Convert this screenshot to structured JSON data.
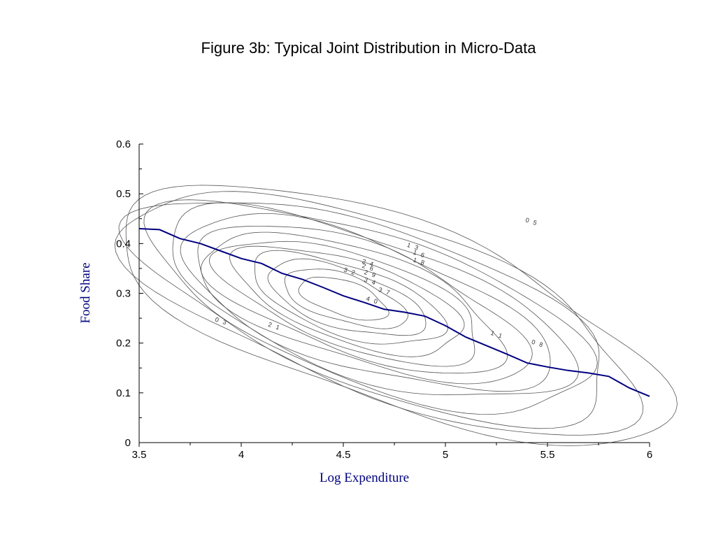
{
  "chart_data": {
    "type": "contour",
    "title": "Figure 3b: Typical Joint Distribution in Micro-Data",
    "xlabel": "Log Expenditure",
    "ylabel": "Food Share",
    "xlim": [
      3.5,
      6
    ],
    "ylim": [
      0,
      0.6
    ],
    "x_ticks": [
      "3.5",
      "4",
      "4.5",
      "5",
      "5.5",
      "6"
    ],
    "y_ticks": [
      "0",
      "0.1",
      "0.2",
      "0.3",
      "0.4",
      "0.5",
      "0.6"
    ],
    "x_tick_values": [
      3.5,
      4,
      4.5,
      5,
      5.5,
      6
    ],
    "y_tick_values": [
      0,
      0.1,
      0.2,
      0.3,
      0.4,
      0.5,
      0.6
    ],
    "grid": false,
    "colors": {
      "regression": "#000080",
      "axis_title": "#000080",
      "contour": "#555555"
    },
    "density_peak": {
      "x": 4.5,
      "y": 0.29
    },
    "contour_labels": [
      {
        "text": "0 5",
        "x": 5.42,
        "y": 0.44
      },
      {
        "text": "1 3",
        "x": 4.84,
        "y": 0.39
      },
      {
        "text": "1 6",
        "x": 4.87,
        "y": 0.375
      },
      {
        "text": "1 8",
        "x": 4.87,
        "y": 0.36
      },
      {
        "text": "2 4",
        "x": 4.62,
        "y": 0.357
      },
      {
        "text": "2 6",
        "x": 4.62,
        "y": 0.348
      },
      {
        "text": "2 9",
        "x": 4.63,
        "y": 0.335
      },
      {
        "text": "3 2",
        "x": 4.53,
        "y": 0.34
      },
      {
        "text": "3 4",
        "x": 4.63,
        "y": 0.32
      },
      {
        "text": "3 7",
        "x": 4.7,
        "y": 0.3
      },
      {
        "text": "4 0",
        "x": 4.64,
        "y": 0.282
      },
      {
        "text": "2 1",
        "x": 4.16,
        "y": 0.23
      },
      {
        "text": "0 3",
        "x": 3.9,
        "y": 0.24
      },
      {
        "text": "1 1",
        "x": 5.25,
        "y": 0.213
      },
      {
        "text": "0 8",
        "x": 5.45,
        "y": 0.195
      }
    ],
    "series": [
      {
        "type": "line",
        "x": [
          3.5,
          3.6,
          3.7,
          3.8,
          3.9,
          4.0,
          4.1,
          4.2,
          4.3,
          4.4,
          4.5,
          4.6,
          4.7,
          4.8,
          4.9,
          5.0,
          5.1,
          5.2,
          5.3,
          5.4,
          5.5,
          5.6,
          5.7,
          5.8,
          5.9,
          6.0
        ],
        "y": [
          0.43,
          0.428,
          0.41,
          0.4,
          0.385,
          0.37,
          0.36,
          0.34,
          0.328,
          0.312,
          0.295,
          0.282,
          0.268,
          0.262,
          0.254,
          0.235,
          0.212,
          0.195,
          0.178,
          0.16,
          0.152,
          0.145,
          0.14,
          0.133,
          0.11,
          0.093
        ]
      }
    ]
  }
}
